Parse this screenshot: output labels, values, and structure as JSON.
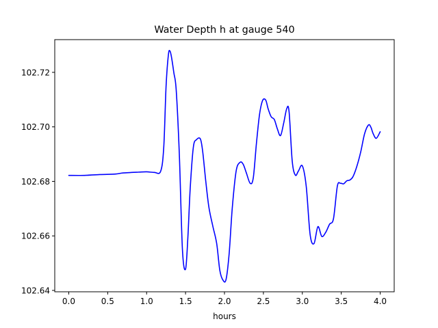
{
  "chart_data": {
    "type": "line",
    "title": "Water Depth h at gauge 540",
    "xlabel": "hours",
    "ylabel": "",
    "xlim": [
      -0.18,
      4.18
    ],
    "ylim": [
      102.6395,
      102.732
    ],
    "xticks": [
      0.0,
      0.5,
      1.0,
      1.5,
      2.0,
      2.5,
      3.0,
      3.5,
      4.0
    ],
    "xtick_labels": [
      "0.0",
      "0.5",
      "1.0",
      "1.5",
      "2.0",
      "2.5",
      "3.0",
      "3.5",
      "4.0"
    ],
    "yticks": [
      102.64,
      102.66,
      102.68,
      102.7,
      102.72
    ],
    "ytick_labels": [
      "102.64",
      "102.66",
      "102.68",
      "102.70",
      "102.72"
    ],
    "grid": false,
    "legend": "none",
    "series": [
      {
        "color": "#0000ff",
        "x": [
          0.0,
          0.2,
          0.4,
          0.6,
          0.7,
          0.9,
          1.0,
          1.1,
          1.18,
          1.22,
          1.25,
          1.28,
          1.3,
          1.32,
          1.35,
          1.38,
          1.42,
          1.46,
          1.5,
          1.53,
          1.56,
          1.6,
          1.64,
          1.69,
          1.72,
          1.76,
          1.8,
          1.85,
          1.9,
          1.94,
          1.98,
          2.02,
          2.06,
          2.1,
          2.15,
          2.2,
          2.24,
          2.28,
          2.33,
          2.37,
          2.41,
          2.45,
          2.49,
          2.53,
          2.56,
          2.6,
          2.64,
          2.68,
          2.72,
          2.76,
          2.8,
          2.83,
          2.87,
          2.91,
          2.95,
          3.0,
          3.05,
          3.1,
          3.15,
          3.2,
          3.25,
          3.3,
          3.35,
          3.4,
          3.45,
          3.49,
          3.53,
          3.57,
          3.61,
          3.65,
          3.7,
          3.75,
          3.8,
          3.85,
          3.88,
          3.91,
          3.95,
          4.0
        ],
        "y": [
          102.6822,
          102.6822,
          102.6825,
          102.6827,
          102.6831,
          102.6834,
          102.6835,
          102.6833,
          102.6837,
          102.6925,
          102.715,
          102.7265,
          102.7278,
          102.7255,
          102.7198,
          102.7135,
          102.69,
          102.655,
          102.6478,
          102.6595,
          102.6775,
          102.6925,
          102.6953,
          102.6956,
          102.691,
          102.68,
          102.6705,
          102.6636,
          102.6572,
          102.6474,
          102.6438,
          102.644,
          102.6535,
          102.6702,
          102.6838,
          102.687,
          102.6863,
          102.6832,
          102.6793,
          102.6813,
          102.6938,
          102.7045,
          102.7097,
          102.7098,
          102.7067,
          102.7037,
          102.7027,
          102.6992,
          102.6968,
          102.7013,
          102.7067,
          102.7055,
          102.6875,
          102.6823,
          102.6838,
          102.6857,
          102.6782,
          102.6605,
          102.6572,
          102.6634,
          102.6598,
          102.6613,
          102.6643,
          102.6663,
          102.6783,
          102.6793,
          102.6791,
          102.6802,
          102.6805,
          102.6817,
          102.6855,
          102.6908,
          102.6975,
          102.7007,
          102.6999,
          102.6975,
          102.6958,
          102.6982
        ]
      }
    ]
  }
}
